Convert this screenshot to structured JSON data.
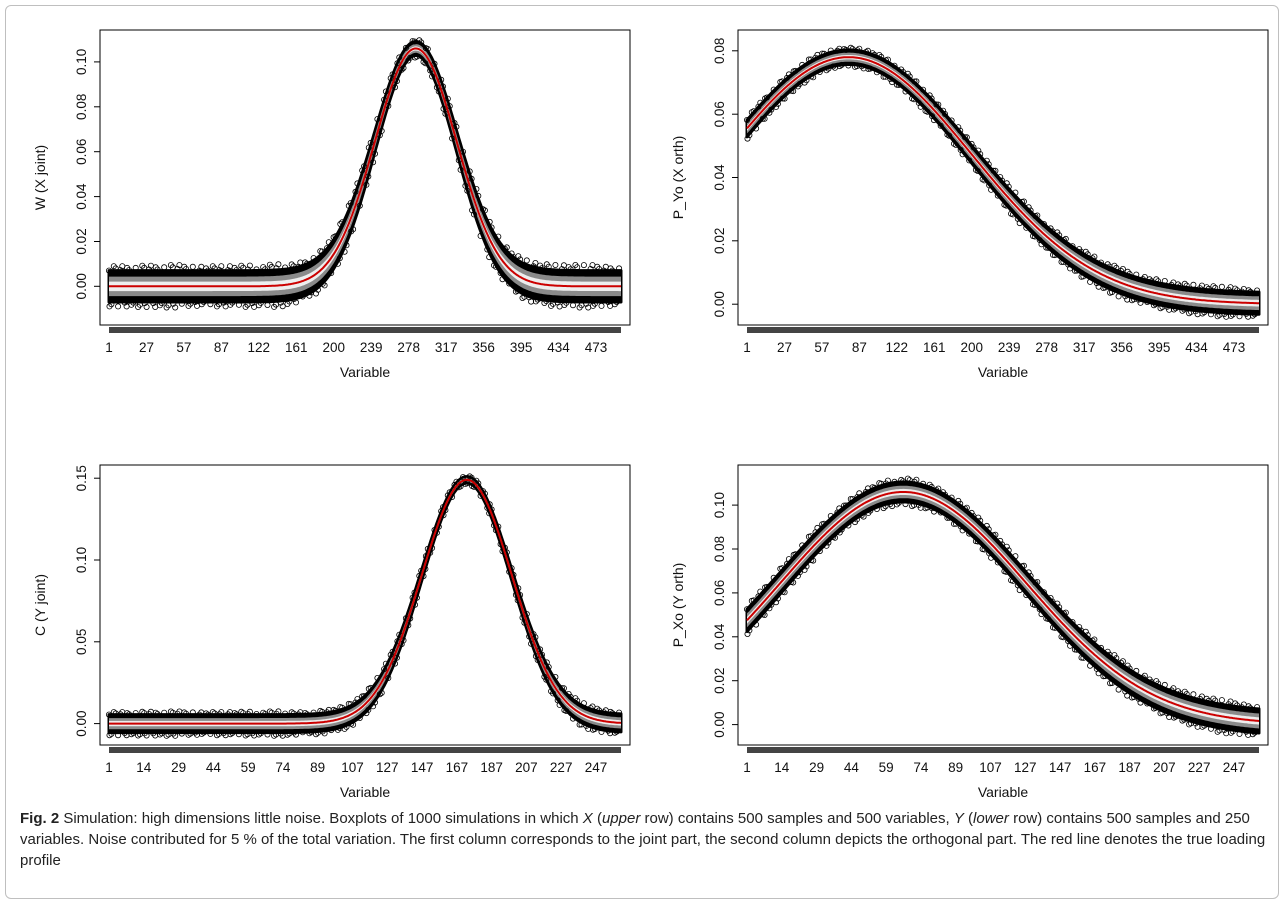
{
  "chart_data": [
    {
      "type": "boxplot",
      "ylabel": "W (X joint)",
      "xlabel": "Variable",
      "x_ticks": [
        "1",
        "27",
        "57",
        "87",
        "122",
        "161",
        "200",
        "239",
        "278",
        "317",
        "356",
        "395",
        "434",
        "473"
      ],
      "y_ticks": [
        "0.00",
        "0.02",
        "0.04",
        "0.06",
        "0.08",
        "0.10"
      ],
      "ylim": [
        -0.015,
        0.112
      ],
      "xlim": [
        1,
        500
      ],
      "profile": {
        "shape": "gaussian",
        "peak_x": 300,
        "peak_y": 0.106,
        "width": 40
      },
      "spread": {
        "outer": 0.007,
        "tail_shrink": 0.35
      },
      "true_line_color": "#cc0000"
    },
    {
      "type": "boxplot",
      "ylabel": "P_Yo (X orth)",
      "xlabel": "Variable",
      "x_ticks": [
        "1",
        "27",
        "57",
        "87",
        "122",
        "161",
        "200",
        "239",
        "278",
        "317",
        "356",
        "395",
        "434",
        "473"
      ],
      "y_ticks": [
        "0.00",
        "0.02",
        "0.04",
        "0.06",
        "0.08"
      ],
      "ylim": [
        -0.005,
        0.085
      ],
      "xlim": [
        1,
        500
      ],
      "profile": {
        "shape": "gaussian",
        "peak_x": 100,
        "peak_y": 0.078,
        "width": 120
      },
      "spread": {
        "outer": 0.0035,
        "tail_shrink": 0.6
      },
      "true_line_color": "#cc0000"
    },
    {
      "type": "boxplot",
      "ylabel": "C (Y joint)",
      "xlabel": "Variable",
      "x_ticks": [
        "1",
        "14",
        "29",
        "44",
        "59",
        "74",
        "89",
        "107",
        "127",
        "147",
        "167",
        "187",
        "207",
        "227",
        "247"
      ],
      "y_ticks": [
        "0.00",
        "0.05",
        "0.10",
        "0.15"
      ],
      "ylim": [
        -0.01,
        0.155
      ],
      "xlim": [
        1,
        250
      ],
      "profile": {
        "shape": "gaussian",
        "peak_x": 175,
        "peak_y": 0.149,
        "width": 22
      },
      "spread": {
        "outer": 0.0055,
        "tail_shrink": 0.25
      },
      "true_line_color": "#cc0000"
    },
    {
      "type": "boxplot",
      "ylabel": "P_Xo (Y orth)",
      "xlabel": "Variable",
      "x_ticks": [
        "1",
        "14",
        "29",
        "44",
        "59",
        "74",
        "89",
        "107",
        "127",
        "147",
        "167",
        "187",
        "207",
        "227",
        "247"
      ],
      "y_ticks": [
        "0.00",
        "0.02",
        "0.04",
        "0.06",
        "0.08",
        "0.10"
      ],
      "ylim": [
        -0.007,
        0.116
      ],
      "xlim": [
        1,
        250
      ],
      "profile": {
        "shape": "gaussian",
        "peak_x": 77,
        "peak_y": 0.106,
        "width": 60
      },
      "spread": {
        "outer": 0.0055,
        "tail_shrink": 0.8
      },
      "true_line_color": "#cc0000"
    }
  ],
  "caption": {
    "fig_label": "Fig. 2",
    "text_1": " Simulation: high dimensions little noise. Boxplots of 1000 simulations in which ",
    "x_var": "X",
    "text_2": " (",
    "upper": "upper",
    "text_3": " row) contains 500 samples and 500 variables, ",
    "y_var": "Y",
    "text_4": " (",
    "lower": "lower",
    "text_5": " row) contains 500 samples and 250 variables. Noise contributed for 5 % of the total variation. The first column corresponds to the joint part, the second column depicts the orthogonal part. The red line denotes the true loading profile"
  }
}
